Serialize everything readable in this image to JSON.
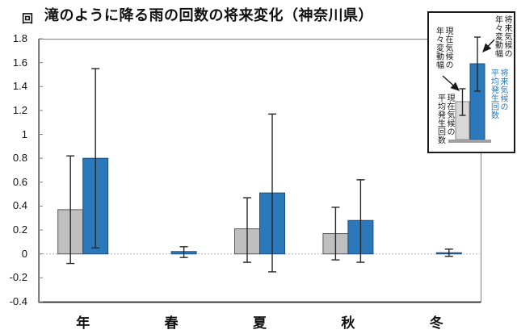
{
  "title": "滝のように降る雨の回数の将来変化（神奈川県）",
  "unit": "回",
  "chart_data": {
    "type": "bar",
    "title": "滝のように降る雨の回数の将来変化（神奈川県）",
    "ylabel_unit": "回",
    "categories": [
      "年",
      "春",
      "夏",
      "秋",
      "冬"
    ],
    "yticks": [
      "1.8",
      "1.6",
      "1.4",
      "1.2",
      "1",
      "0.8",
      "0.6",
      "0.4",
      "0.2",
      "0",
      "-0.2",
      "-0.4"
    ],
    "ylim": [
      -0.4,
      1.8
    ],
    "grid": false,
    "zero_line_dotted": true,
    "series": [
      {
        "name": "現在気候の平均発生回数",
        "color": "#BFBFBF",
        "edge_color": "#595959",
        "values": [
          0.37,
          0,
          0.21,
          0.17,
          0
        ],
        "error_ranges": [
          [
            -0.08,
            0.82
          ],
          null,
          [
            -0.07,
            0.47
          ],
          [
            -0.05,
            0.39
          ],
          null
        ]
      },
      {
        "name": "将来気候の平均発生回数",
        "color": "#2B79BB",
        "edge_color": "#1F4E79",
        "values": [
          0.8,
          0.02,
          0.51,
          0.28,
          0.01
        ],
        "error_ranges": [
          [
            0.05,
            1.55
          ],
          [
            -0.03,
            0.06
          ],
          [
            -0.15,
            1.17
          ],
          [
            -0.07,
            0.62
          ],
          [
            -0.02,
            0.04
          ]
        ]
      }
    ]
  },
  "legend": {
    "current_variability": [
      "現在気候の",
      "年々変動幅"
    ],
    "future_variability": [
      "将来気候の",
      "年々変動幅"
    ],
    "current_mean": [
      "現在気候の",
      "平均発生回数"
    ],
    "future_mean": [
      "将来気候の",
      "平均発生回数"
    ],
    "colors": {
      "current_fill": "#D9D9D9",
      "current_edge": "#808080",
      "future_fill": "#2B79BB",
      "future_edge": "#1F4E79",
      "future_text": "#2B79BB",
      "error_bar": "#262626"
    }
  }
}
